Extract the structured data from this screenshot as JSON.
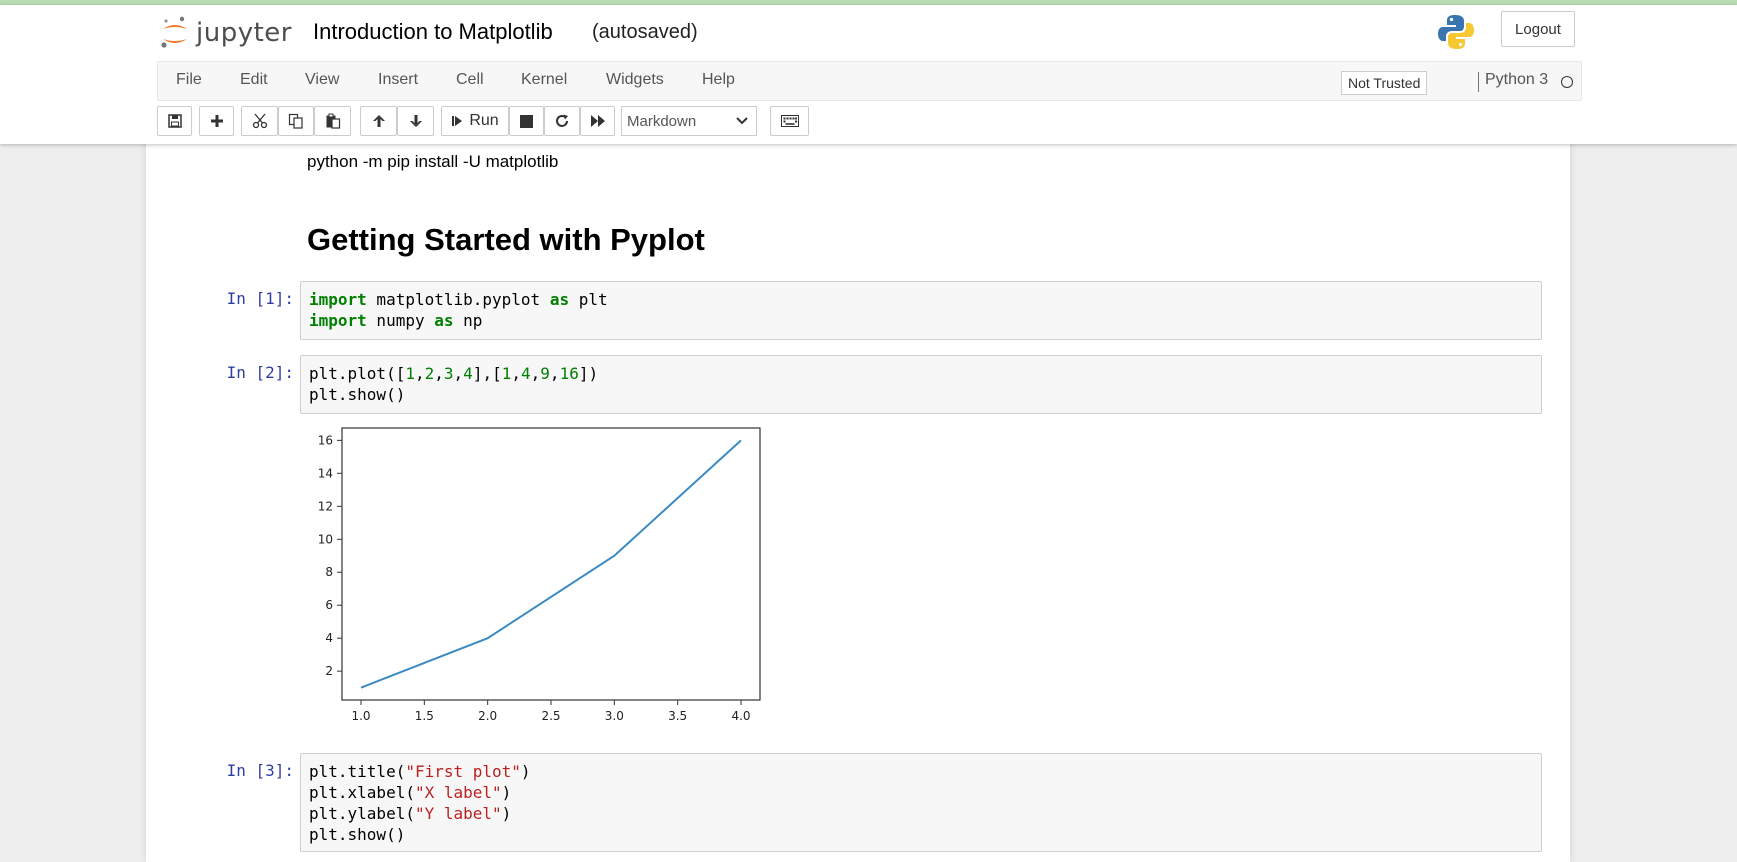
{
  "header": {
    "logo_text": "jupyter",
    "notebook_title": "Introduction to Matplotlib",
    "autosave_status": "(autosaved)",
    "logout_label": "Logout"
  },
  "menubar": {
    "items": [
      "File",
      "Edit",
      "View",
      "Insert",
      "Cell",
      "Kernel",
      "Widgets",
      "Help"
    ],
    "trust_label": "Not Trusted",
    "kernel_name": "Python 3"
  },
  "toolbar": {
    "run_label": "Run",
    "cell_type": "Markdown",
    "buttons": [
      "save-icon",
      "plus-icon",
      "cut-icon",
      "copy-icon",
      "paste-icon",
      "arrow-up-icon",
      "arrow-down-icon",
      "step-forward-icon",
      "stop-icon",
      "refresh-icon",
      "fast-forward-icon",
      "keyboard-icon"
    ]
  },
  "cells": {
    "markdown_text": "python -m pip install -U matplotlib",
    "markdown_heading": "Getting Started with Pyplot",
    "c1": {
      "prompt": "In [1]:",
      "l1a": "import",
      "l1b": " matplotlib.pyplot ",
      "l1c": "as",
      "l1d": " plt",
      "l2a": "import",
      "l2b": " numpy ",
      "l2c": "as",
      "l2d": " np"
    },
    "c2": {
      "prompt": "In [2]:",
      "l1": [
        "plt.plot([",
        "1",
        ",",
        "2",
        ",",
        "3",
        ",",
        "4",
        "],[",
        "1",
        ",",
        "4",
        ",",
        "9",
        ",",
        "16",
        "])"
      ],
      "l2": "plt.show()"
    },
    "c3": {
      "prompt": "In [3]:",
      "l1a": "plt.title(",
      "l1b": "\"First plot\"",
      "l1c": ")",
      "l2a": "plt.xlabel(",
      "l2b": "\"X label\"",
      "l2c": ")",
      "l3a": "plt.ylabel(",
      "l3b": "\"Y label\"",
      "l3c": ")",
      "l4": "plt.show()"
    }
  },
  "chart_data": {
    "type": "line",
    "x": [
      1,
      2,
      3,
      4
    ],
    "series": [
      {
        "values": [
          1,
          4,
          9,
          16
        ],
        "color": "#3b8bc2"
      }
    ],
    "xlim": [
      0.85,
      4.15
    ],
    "ylim": [
      0.25,
      16.75
    ],
    "xticks": [
      "1.0",
      "1.5",
      "2.0",
      "2.5",
      "3.0",
      "3.5",
      "4.0"
    ],
    "yticks": [
      "2",
      "4",
      "6",
      "8",
      "10",
      "12",
      "14",
      "16"
    ],
    "grid": false
  }
}
